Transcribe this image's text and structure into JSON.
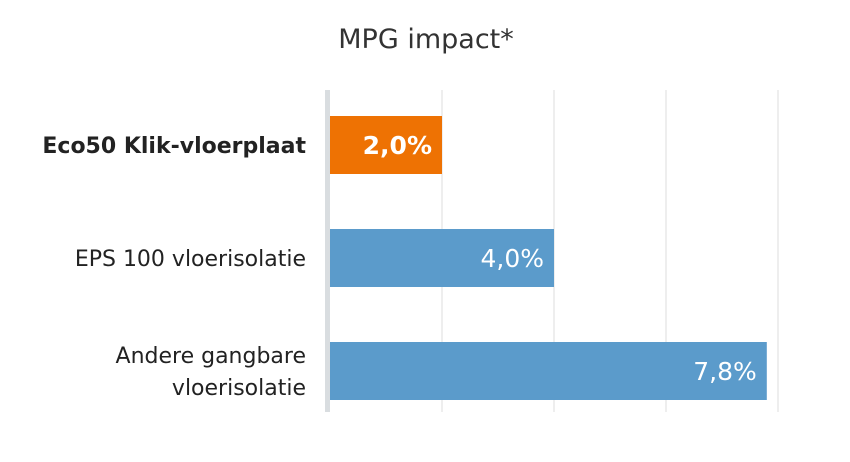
{
  "chart_data": {
    "type": "bar",
    "orientation": "horizontal",
    "title": "MPG impact*",
    "xlabel": "",
    "ylabel": "",
    "xlim": [
      0,
      8
    ],
    "grid": true,
    "categories": [
      {
        "lines": [
          "Eco50 Klik-vloerplaat"
        ],
        "bold": true
      },
      {
        "lines": [
          "EPS 100 vloerisolatie"
        ],
        "bold": false
      },
      {
        "lines": [
          "Andere gangbare",
          "vloerisolatie"
        ],
        "bold": false
      }
    ],
    "values": [
      2.0,
      4.0,
      7.8
    ],
    "data_labels": [
      "2,0%",
      "4,0%",
      "7,8%"
    ],
    "colors": [
      "#ee7203",
      "#5b9bcb",
      "#5b9bcb"
    ],
    "axis_color": "#d9dde0",
    "grid_color": "#dcdcdc"
  }
}
